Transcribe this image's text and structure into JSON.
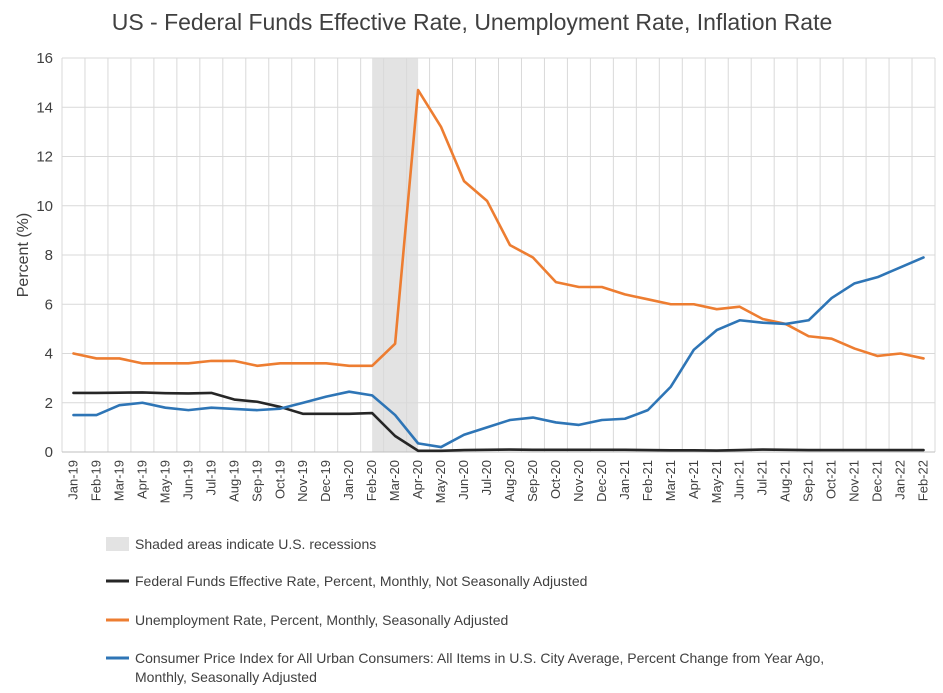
{
  "chart_data": {
    "type": "line",
    "title": "US - Federal Funds Effective Rate, Unemployment Rate, Inflation Rate",
    "ylabel": "Percent (%)",
    "xlabel": "",
    "ylim": [
      0,
      16
    ],
    "yticks": [
      0,
      2,
      4,
      6,
      8,
      10,
      12,
      14,
      16
    ],
    "grid": true,
    "categories": [
      "Jan-19",
      "Feb-19",
      "Mar-19",
      "Apr-19",
      "May-19",
      "Jun-19",
      "Jul-19",
      "Aug-19",
      "Sep-19",
      "Oct-19",
      "Nov-19",
      "Dec-19",
      "Jan-20",
      "Feb-20",
      "Mar-20",
      "Apr-20",
      "May-20",
      "Jun-20",
      "Jul-20",
      "Aug-20",
      "Sep-20",
      "Oct-20",
      "Nov-20",
      "Dec-20",
      "Jan-21",
      "Feb-21",
      "Mar-21",
      "Apr-21",
      "May-21",
      "Jun-21",
      "Jul-21",
      "Aug-21",
      "Sep-21",
      "Oct-21",
      "Nov-21",
      "Dec-21",
      "Jan-22",
      "Feb-22"
    ],
    "recession": {
      "start": "Feb-20",
      "end": "Apr-20",
      "label": "Shaded areas indicate U.S. recessions",
      "color": "#e3e3e3"
    },
    "series": [
      {
        "name": "Federal Funds Effective Rate, Percent, Monthly, Not Seasonally Adjusted",
        "color": "#262626",
        "values": [
          2.4,
          2.4,
          2.41,
          2.42,
          2.39,
          2.38,
          2.4,
          2.13,
          2.04,
          1.83,
          1.55,
          1.55,
          1.55,
          1.58,
          0.65,
          0.05,
          0.05,
          0.08,
          0.09,
          0.1,
          0.09,
          0.09,
          0.09,
          0.09,
          0.09,
          0.08,
          0.07,
          0.07,
          0.06,
          0.08,
          0.1,
          0.09,
          0.08,
          0.08,
          0.08,
          0.08,
          0.08,
          0.08
        ]
      },
      {
        "name": "Unemployment Rate, Percent, Monthly, Seasonally Adjusted",
        "color": "#ed7d31",
        "values": [
          4.0,
          3.8,
          3.8,
          3.6,
          3.6,
          3.6,
          3.7,
          3.7,
          3.5,
          3.6,
          3.6,
          3.6,
          3.5,
          3.5,
          4.4,
          14.7,
          13.2,
          11.0,
          10.2,
          8.4,
          7.9,
          6.9,
          6.7,
          6.7,
          6.4,
          6.2,
          6.0,
          6.0,
          5.8,
          5.9,
          5.4,
          5.2,
          4.7,
          4.6,
          4.2,
          3.9,
          4.0,
          3.8
        ]
      },
      {
        "name": "Consumer Price Index for All Urban Consumers: All Items in U.S. City Average, Percent Change from Year Ago, Monthly, Seasonally Adjusted",
        "color": "#2e75b6",
        "values": [
          1.5,
          1.5,
          1.9,
          2.0,
          1.8,
          1.7,
          1.8,
          1.75,
          1.7,
          1.76,
          2.0,
          2.25,
          2.45,
          2.3,
          1.5,
          0.35,
          0.2,
          0.7,
          1.0,
          1.3,
          1.4,
          1.2,
          1.1,
          1.3,
          1.35,
          1.7,
          2.65,
          4.15,
          4.95,
          5.35,
          5.25,
          5.2,
          5.35,
          6.25,
          6.85,
          7.1,
          7.5,
          7.9
        ]
      }
    ]
  }
}
